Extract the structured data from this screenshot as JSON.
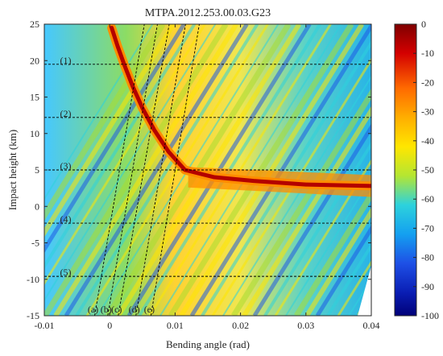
{
  "chart_data": {
    "type": "heatmap",
    "title": "MTPA.2012.253.00.03.G23",
    "xlabel": "Bending angle (rad)",
    "ylabel": "Impact height (km)",
    "xlim": [
      -0.01,
      0.04
    ],
    "ylim": [
      -15,
      25
    ],
    "x_ticks": [
      -0.01,
      0,
      0.01,
      0.02,
      0.03,
      0.04
    ],
    "x_tick_labels": [
      "-0.01",
      "0",
      "0.01",
      "0.02",
      "0.03",
      "0.04"
    ],
    "y_ticks": [
      -15,
      -10,
      -5,
      0,
      5,
      10,
      15,
      20,
      25
    ],
    "y_tick_labels": [
      "-15",
      "-10",
      "-5",
      "0",
      "5",
      "10",
      "15",
      "20",
      "25"
    ],
    "colorbar": {
      "min": -100,
      "max": 0,
      "ticks": [
        0,
        -10,
        -20,
        -30,
        -40,
        -50,
        -60,
        -70,
        -80,
        -90,
        -100
      ],
      "tick_labels": [
        "0",
        "-10",
        "-20",
        "-30",
        "-40",
        "-50",
        "-60",
        "-70",
        "-80",
        "-90",
        "-100"
      ]
    },
    "ridge": {
      "name": "bending angle profile",
      "points": [
        {
          "x": 0.0003,
          "y": 24.5
        },
        {
          "x": 0.0012,
          "y": 22.0
        },
        {
          "x": 0.0022,
          "y": 19.5
        },
        {
          "x": 0.0035,
          "y": 16.5
        },
        {
          "x": 0.005,
          "y": 13.5
        },
        {
          "x": 0.0068,
          "y": 10.5
        },
        {
          "x": 0.009,
          "y": 7.5
        },
        {
          "x": 0.0115,
          "y": 5.0
        },
        {
          "x": 0.016,
          "y": 4.0
        },
        {
          "x": 0.022,
          "y": 3.5
        },
        {
          "x": 0.03,
          "y": 3.0
        },
        {
          "x": 0.04,
          "y": 2.8
        }
      ]
    },
    "horizontal_lines": [
      {
        "label": "(1)",
        "y": 19.5
      },
      {
        "label": "(2)",
        "y": 12.2
      },
      {
        "label": "(3)",
        "y": 5.0
      },
      {
        "label": "(4)",
        "y": -2.3
      },
      {
        "label": "(5)",
        "y": -9.6
      }
    ],
    "slanted_lines": [
      {
        "label": "(a)",
        "x_at_bottom": -0.0023,
        "x_at_top": 0.0053
      },
      {
        "label": "(b)",
        "x_at_bottom": -0.0003,
        "x_at_top": 0.0073
      },
      {
        "label": "(c)",
        "x_at_bottom": 0.0013,
        "x_at_top": 0.0091
      },
      {
        "label": "(d)",
        "x_at_bottom": 0.004,
        "x_at_top": 0.0116
      },
      {
        "label": "(e)",
        "x_at_bottom": 0.0063,
        "x_at_top": 0.0137
      }
    ],
    "grid": false,
    "legend": "none"
  },
  "colors": {
    "red": "#b40000",
    "orange": "#ff8c00",
    "yellow": "#ffe600",
    "green": "#aadc32",
    "cyan": "#2dd2dc",
    "blue": "#1e5ae6",
    "navy": "#000078"
  }
}
